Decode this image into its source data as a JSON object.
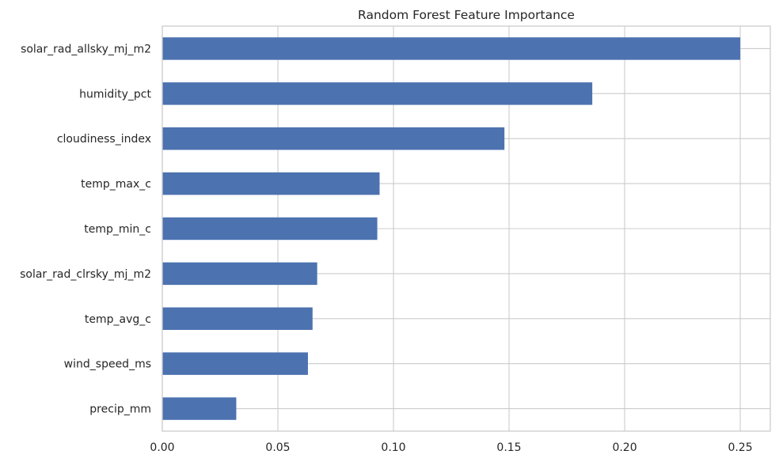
{
  "chart_data": {
    "type": "bar",
    "orientation": "horizontal",
    "title": "Random Forest Feature Importance",
    "xlabel": "",
    "ylabel": "",
    "categories": [
      "solar_rad_allsky_mj_m2",
      "humidity_pct",
      "cloudiness_index",
      "temp_max_c",
      "temp_min_c",
      "solar_rad_clrsky_mj_m2",
      "temp_avg_c",
      "wind_speed_ms",
      "precip_mm"
    ],
    "values": [
      0.25,
      0.186,
      0.148,
      0.094,
      0.093,
      0.067,
      0.065,
      0.063,
      0.032
    ],
    "xlim": [
      0,
      0.263
    ],
    "xticks": [
      0.0,
      0.05,
      0.1,
      0.15,
      0.2,
      0.25
    ],
    "xtick_labels": [
      "0.00",
      "0.05",
      "0.10",
      "0.15",
      "0.20",
      "0.25"
    ],
    "grid": true,
    "legend": "none",
    "colors": {
      "bar": "#4c72b0",
      "grid": "#cccccc",
      "text": "#262626",
      "background": "#ffffff"
    }
  }
}
